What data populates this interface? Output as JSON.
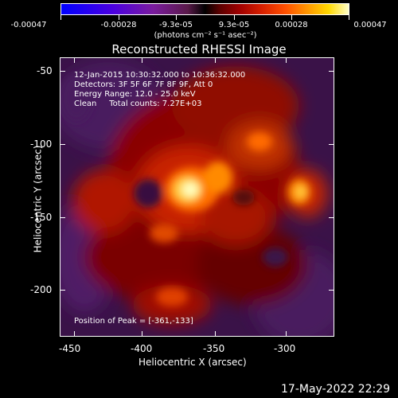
{
  "colorbar": {
    "labels": [
      "-0.00047",
      "-0.00028",
      "-9.3e-05",
      "9.3e-05",
      "0.00028",
      "0.00047"
    ],
    "units": "(photons cm⁻² s⁻¹ asec⁻²)"
  },
  "title": "Reconstructed RHESSI Image",
  "info": {
    "line1": "12-Jan-2015 10:30:32.000 to 10:36:32.000",
    "line2": "Detectors: 3F 5F 6F 7F 8F 9F, Att 0",
    "line3": "Energy Range: 12.0 - 25.0 keV",
    "line4": "Clean     Total counts: 7.27E+03",
    "peak": "Position of Peak = [-361,-133]"
  },
  "axes": {
    "xlabel": "Heliocentric X (arcsec)",
    "ylabel": "Heliocentric Y (arcsec)",
    "xticks": [
      "-450",
      "-400",
      "-350",
      "-300"
    ],
    "yticks": [
      "-50",
      "-100",
      "-150",
      "-200"
    ]
  },
  "timestamp": "17-May-2022 22:29"
}
